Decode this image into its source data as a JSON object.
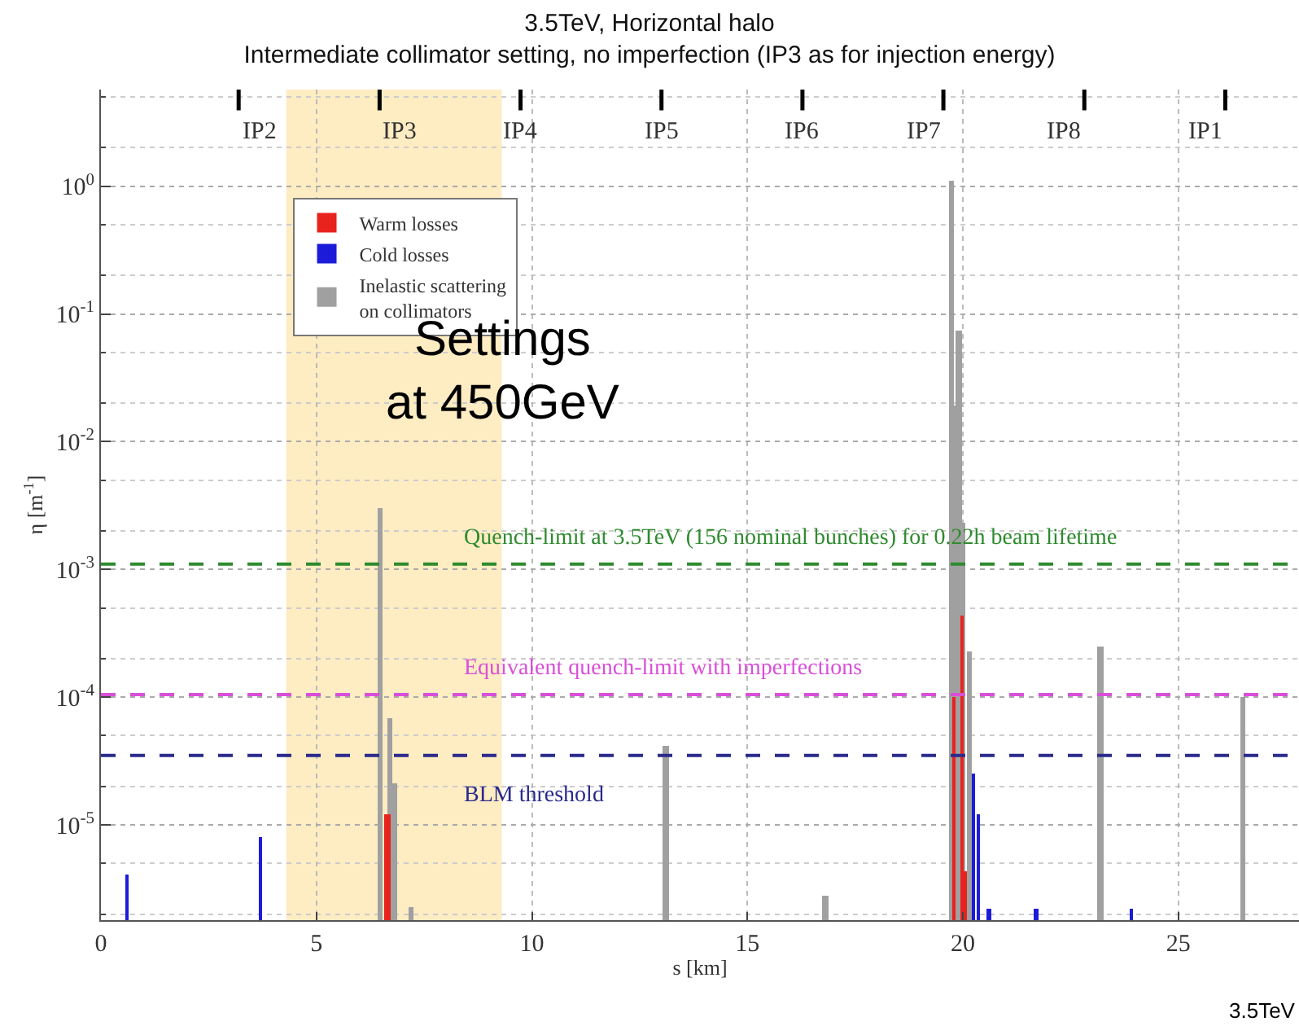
{
  "chart_data": {
    "type": "bar",
    "title": "3.5TeV, Horizontal halo",
    "subtitle": "Intermediate collimator setting, no imperfection (IP3 as for injection energy)",
    "xlabel": "s [km]",
    "ylabel": "η [m$^{-1}$]",
    "series": [
      {
        "name": "Warm losses",
        "color": "#e8231d",
        "x": [
          6.6,
          6.7,
          19.8,
          20.0,
          20.05
        ],
        "values": [
          1.2e-05,
          1.2e-05,
          0.0001,
          0.00043,
          4.4e-06
        ]
      },
      {
        "name": "Cold losses",
        "color": "#1c1cd8",
        "x": [
          0.6,
          3.7,
          20.25,
          20.35,
          20.6,
          21.7,
          23.9
        ],
        "values": [
          4.1e-06,
          8e-06,
          2.5e-05,
          1.2e-05,
          2.2e-06,
          2.2e-06,
          2.2e-06
        ]
      },
      {
        "name": "Inelastic scattering on collimators",
        "color": "#a0a0a0",
        "x": [
          6.47,
          6.7,
          6.8,
          7.2,
          13.1,
          16.8,
          19.74,
          19.8,
          19.9,
          20.0,
          20.15,
          23.2,
          26.5
        ],
        "values": [
          0.003,
          6.8e-05,
          2.1e-05,
          2.3e-06,
          4.2e-05,
          2.8e-06,
          1.1,
          0.019,
          0.075,
          0.0023,
          0.00023,
          0.00025,
          0.0001
        ]
      }
    ],
    "xlim": [
      0,
      27.8
    ],
    "xticks": [
      0,
      5,
      10,
      15,
      20,
      25
    ],
    "log": "y",
    "ylim": [
      1.8e-06,
      5.7
    ],
    "yticks": [
      {
        "value": 1e-05,
        "label": "10$^{-5}$"
      },
      {
        "value": 0.0001,
        "label": "10$^{-4}$"
      },
      {
        "value": 0.001,
        "label": "10$^{-3}$"
      },
      {
        "value": 0.01,
        "label": "10$^{-2}$"
      },
      {
        "value": 0.1,
        "label": "10$^{-1}$"
      },
      {
        "value": 1,
        "label": "10$^{0}$"
      }
    ],
    "ref_lines": [
      {
        "axis": "y",
        "value": 0.0011,
        "label": "Quench-limit at 3.5TeV (156 nominal bunches) for 0.22h beam lifetime",
        "color": "#2e8b2e",
        "line_style": "dashed"
      },
      {
        "axis": "y",
        "value": 0.000105,
        "label": "Equivalent quench-limit with imperfections",
        "color": "#d94fd9",
        "line_style": "dashed"
      },
      {
        "axis": "y",
        "value": 3.5e-05,
        "label": "BLM threshold",
        "color": "#2a2a8c",
        "line_style": "dashed"
      }
    ],
    "bands": [
      {
        "axis": "x",
        "from": 4.3,
        "to": 9.3,
        "label": "Settings at 450GeV",
        "color": "#fdc84f"
      }
    ],
    "annotations": [
      "IP2",
      "IP3",
      "IP4",
      "IP5",
      "IP6",
      "IP7",
      "IP8",
      "IP1",
      "3.5TeV"
    ],
    "grid": true,
    "legend": "top left"
  }
}
